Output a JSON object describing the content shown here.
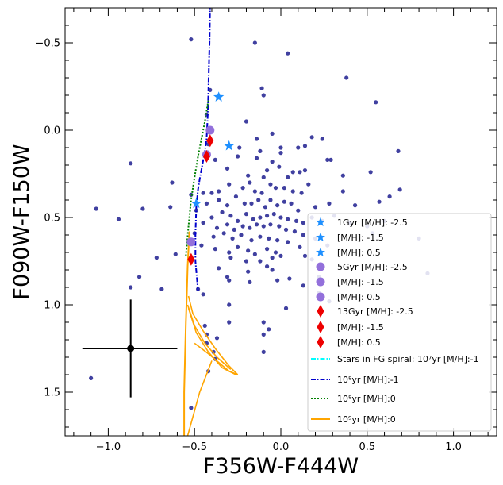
{
  "chart_data": {
    "type": "scatter",
    "xlabel": "F356W-F444W",
    "ylabel": "F090W-F150W",
    "xlim": [
      -1.25,
      1.25
    ],
    "ylim": [
      1.75,
      -0.7
    ],
    "x_ticks": [
      -1.0,
      -0.5,
      0.0,
      0.5,
      1.0
    ],
    "x_tick_labels": [
      "−1.0",
      "−0.5",
      "0.0",
      "0.5",
      "1.0"
    ],
    "y_ticks": [
      -0.5,
      0.0,
      0.5,
      1.0,
      1.5
    ],
    "y_tick_labels": [
      "−0.5",
      "0.0",
      "0.5",
      "1.0",
      "1.5"
    ],
    "colors": {
      "stars": "#1f1f8f",
      "blue_star": "#1e90ff",
      "purple": "#9370db",
      "red": "#ee0000",
      "cyan": "#00ffff",
      "line_blue": "#0000cd",
      "line_green": "#008000",
      "line_orange": "#ffa500"
    },
    "error_bar": {
      "x": -0.87,
      "y": 1.25,
      "xerr_low": 0.28,
      "xerr_high": 0.27,
      "yerr_low": 0.28,
      "yerr_high": 0.28
    },
    "stars": [
      [
        -0.52,
        -0.52
      ],
      [
        0.04,
        -0.44
      ],
      [
        -0.15,
        -0.5
      ],
      [
        0.38,
        -0.3
      ],
      [
        0.55,
        -0.16
      ],
      [
        -0.1,
        -0.2
      ],
      [
        -0.11,
        -0.24
      ],
      [
        -0.2,
        -0.05
      ],
      [
        -0.41,
        -0.23
      ],
      [
        -0.43,
        -0.09
      ],
      [
        -0.42,
        0.08
      ],
      [
        -0.14,
        0.05
      ],
      [
        -0.05,
        0.02
      ],
      [
        0.18,
        0.04
      ],
      [
        0.24,
        0.05
      ],
      [
        -0.87,
        0.19
      ],
      [
        -0.63,
        0.3
      ],
      [
        0.0,
        0.1
      ],
      [
        0.1,
        0.1
      ],
      [
        0.14,
        0.09
      ],
      [
        -0.24,
        0.1
      ],
      [
        -0.12,
        0.12
      ],
      [
        0.0,
        0.13
      ],
      [
        0.27,
        0.17
      ],
      [
        0.29,
        0.17
      ],
      [
        -0.38,
        0.17
      ],
      [
        -0.25,
        0.15
      ],
      [
        -0.14,
        0.16
      ],
      [
        -0.05,
        0.18
      ],
      [
        -0.01,
        0.21
      ],
      [
        0.07,
        0.24
      ],
      [
        0.11,
        0.24
      ],
      [
        -0.31,
        0.22
      ],
      [
        -0.19,
        0.26
      ],
      [
        -0.1,
        0.27
      ],
      [
        -0.08,
        0.23
      ],
      [
        0.04,
        0.27
      ],
      [
        0.14,
        0.23
      ],
      [
        0.36,
        0.26
      ],
      [
        0.52,
        0.24
      ],
      [
        0.68,
        0.12
      ],
      [
        0.16,
        0.31
      ],
      [
        -0.4,
        0.36
      ],
      [
        -0.36,
        0.35
      ],
      [
        -0.3,
        0.31
      ],
      [
        -0.22,
        0.33
      ],
      [
        -0.18,
        0.3
      ],
      [
        -0.15,
        0.35
      ],
      [
        -0.11,
        0.36
      ],
      [
        -0.06,
        0.31
      ],
      [
        -0.03,
        0.33
      ],
      [
        0.02,
        0.33
      ],
      [
        0.07,
        0.35
      ],
      [
        0.12,
        0.36
      ],
      [
        -0.52,
        0.37
      ],
      [
        -0.45,
        0.36
      ],
      [
        -0.43,
        0.42
      ],
      [
        -0.36,
        0.4
      ],
      [
        -0.31,
        0.43
      ],
      [
        -0.26,
        0.38
      ],
      [
        -0.21,
        0.42
      ],
      [
        -0.17,
        0.42
      ],
      [
        -0.13,
        0.4
      ],
      [
        -0.09,
        0.44
      ],
      [
        -0.06,
        0.4
      ],
      [
        -0.02,
        0.43
      ],
      [
        0.02,
        0.41
      ],
      [
        0.06,
        0.42
      ],
      [
        0.1,
        0.46
      ],
      [
        0.2,
        0.44
      ],
      [
        0.28,
        0.42
      ],
      [
        0.36,
        0.35
      ],
      [
        0.43,
        0.43
      ],
      [
        0.57,
        0.41
      ],
      [
        0.63,
        0.38
      ],
      [
        0.69,
        0.34
      ],
      [
        -0.64,
        0.44
      ],
      [
        -0.8,
        0.45
      ],
      [
        -1.07,
        0.45
      ],
      [
        -0.94,
        0.51
      ],
      [
        -0.49,
        0.46
      ],
      [
        -0.4,
        0.5
      ],
      [
        -0.34,
        0.47
      ],
      [
        -0.29,
        0.49
      ],
      [
        -0.25,
        0.52
      ],
      [
        -0.2,
        0.48
      ],
      [
        -0.16,
        0.51
      ],
      [
        -0.12,
        0.5
      ],
      [
        -0.08,
        0.49
      ],
      [
        -0.04,
        0.48
      ],
      [
        0.0,
        0.5
      ],
      [
        0.04,
        0.51
      ],
      [
        0.09,
        0.52
      ],
      [
        0.13,
        0.53
      ],
      [
        0.18,
        0.5
      ],
      [
        0.24,
        0.52
      ],
      [
        0.31,
        0.49
      ],
      [
        0.4,
        0.53
      ],
      [
        0.5,
        0.55
      ],
      [
        0.6,
        0.52
      ],
      [
        -0.45,
        0.53
      ],
      [
        -0.37,
        0.56
      ],
      [
        -0.31,
        0.54
      ],
      [
        -0.27,
        0.57
      ],
      [
        -0.22,
        0.55
      ],
      [
        -0.18,
        0.56
      ],
      [
        -0.14,
        0.54
      ],
      [
        -0.1,
        0.55
      ],
      [
        -0.06,
        0.54
      ],
      [
        -0.01,
        0.55
      ],
      [
        0.03,
        0.57
      ],
      [
        0.08,
        0.58
      ],
      [
        0.13,
        0.6
      ],
      [
        0.2,
        0.62
      ],
      [
        -0.5,
        0.59
      ],
      [
        -0.39,
        0.61
      ],
      [
        -0.33,
        0.59
      ],
      [
        -0.28,
        0.62
      ],
      [
        -0.23,
        0.6
      ],
      [
        -0.17,
        0.63
      ],
      [
        -0.12,
        0.61
      ],
      [
        -0.07,
        0.62
      ],
      [
        -0.02,
        0.63
      ],
      [
        0.04,
        0.64
      ],
      [
        0.11,
        0.67
      ],
      [
        0.27,
        0.66
      ],
      [
        -0.46,
        0.66
      ],
      [
        -0.38,
        0.68
      ],
      [
        -0.3,
        0.7
      ],
      [
        -0.25,
        0.67
      ],
      [
        -0.19,
        0.69
      ],
      [
        -0.15,
        0.71
      ],
      [
        -0.08,
        0.68
      ],
      [
        -0.03,
        0.7
      ],
      [
        0.0,
        0.72
      ],
      [
        -0.61,
        0.71
      ],
      [
        -0.72,
        0.73
      ],
      [
        -0.29,
        0.73
      ],
      [
        -0.2,
        0.75
      ],
      [
        -0.12,
        0.75
      ],
      [
        -0.05,
        0.73
      ],
      [
        0.14,
        0.72
      ],
      [
        0.18,
        0.74
      ],
      [
        -0.08,
        0.78
      ],
      [
        -0.36,
        0.79
      ],
      [
        -0.19,
        0.81
      ],
      [
        -0.05,
        0.8
      ],
      [
        -0.82,
        0.84
      ],
      [
        -0.31,
        0.84
      ],
      [
        -0.3,
        0.86
      ],
      [
        -0.18,
        0.87
      ],
      [
        -0.02,
        0.86
      ],
      [
        0.13,
        0.89
      ],
      [
        0.05,
        0.85
      ],
      [
        -0.87,
        0.9
      ],
      [
        -0.69,
        0.91
      ],
      [
        -0.48,
        0.91
      ],
      [
        -0.45,
        0.94
      ],
      [
        0.22,
        0.93
      ],
      [
        0.28,
        0.98
      ],
      [
        -0.3,
        1.0
      ],
      [
        0.03,
        1.02
      ],
      [
        -0.44,
        1.12
      ],
      [
        -0.3,
        1.1
      ],
      [
        -0.1,
        1.1
      ],
      [
        -0.07,
        1.14
      ],
      [
        -0.43,
        1.17
      ],
      [
        -0.1,
        1.17
      ],
      [
        -0.43,
        1.22
      ],
      [
        -0.37,
        1.19
      ],
      [
        -0.39,
        1.27
      ],
      [
        -0.38,
        1.31
      ],
      [
        -0.1,
        1.27
      ],
      [
        -0.42,
        1.38
      ],
      [
        -1.1,
        1.42
      ],
      [
        -0.52,
        1.59
      ],
      [
        0.85,
        0.82
      ],
      [
        0.22,
        0.84
      ],
      [
        0.8,
        0.62
      ],
      [
        0.53,
        0.59
      ]
    ],
    "series": [
      {
        "name": "1Gyr [M/H]: -2.5",
        "marker": "star",
        "color": "#1e90ff",
        "points": [
          [
            -0.49,
            0.42
          ]
        ]
      },
      {
        "name": "[M/H]: -1.5",
        "marker": "star",
        "color": "#1e90ff",
        "points": [
          [
            -0.3,
            0.09
          ]
        ]
      },
      {
        "name": "[M/H]: 0.5",
        "marker": "star",
        "color": "#1e90ff",
        "points": [
          [
            -0.36,
            -0.19
          ]
        ]
      },
      {
        "name": "5Gyr [M/H]: -2.5",
        "marker": "circle",
        "color": "#9370db",
        "points": [
          [
            -0.52,
            0.64
          ]
        ]
      },
      {
        "name": "[M/H]: -1.5",
        "marker": "circle",
        "color": "#9370db",
        "points": [
          [
            -0.43,
            0.14
          ]
        ]
      },
      {
        "name": "[M/H]: 0.5",
        "marker": "circle",
        "color": "#9370db",
        "points": [
          [
            -0.41,
            0.0
          ]
        ]
      },
      {
        "name": "13Gyr [M/H]: -2.5",
        "marker": "diamond",
        "color": "#ee0000",
        "points": [
          [
            -0.52,
            0.74
          ]
        ]
      },
      {
        "name": "[M/H]: -1.5",
        "marker": "diamond",
        "color": "#ee0000",
        "points": [
          [
            -0.43,
            0.15
          ]
        ]
      },
      {
        "name": "[M/H]: 0.5",
        "marker": "diamond",
        "color": "#ee0000",
        "points": [
          [
            -0.41,
            0.06
          ]
        ]
      },
      {
        "name": "Stars in FG spiral: 10⁷yr [M/H]:-1",
        "style": "dashdot",
        "color": "#00ffff",
        "points": []
      },
      {
        "name": "10⁸yr [M/H]:-1",
        "style": "dashdot",
        "color": "#0000cd",
        "points": [
          [
            -0.41,
            -0.72
          ],
          [
            -0.413,
            -0.5
          ],
          [
            -0.418,
            -0.3
          ],
          [
            -0.42,
            -0.2
          ],
          [
            -0.425,
            -0.05
          ],
          [
            -0.43,
            0.05
          ],
          [
            -0.44,
            0.12
          ],
          [
            -0.455,
            0.2
          ],
          [
            -0.47,
            0.28
          ],
          [
            -0.48,
            0.34
          ],
          [
            -0.49,
            0.44
          ],
          [
            -0.495,
            0.6
          ],
          [
            -0.495,
            0.75
          ],
          [
            -0.48,
            0.92
          ]
        ]
      },
      {
        "name": "10⁸yr [M/H]:0",
        "style": "dotted",
        "color": "#008000",
        "points": [
          [
            -0.42,
            -0.17
          ],
          [
            -0.44,
            -0.05
          ],
          [
            -0.46,
            0.05
          ],
          [
            -0.48,
            0.15
          ],
          [
            -0.5,
            0.27
          ],
          [
            -0.52,
            0.4
          ],
          [
            -0.535,
            0.55
          ],
          [
            -0.55,
            0.72
          ]
        ]
      },
      {
        "name": "10⁹yr [M/H]:0",
        "style": "solid",
        "color": "#ffa500",
        "points": [
          [
            -0.53,
            0.58
          ],
          [
            -0.535,
            0.68
          ],
          [
            -0.54,
            0.78
          ],
          [
            -0.545,
            0.95
          ],
          [
            -0.55,
            1.1
          ],
          [
            -0.555,
            1.3
          ],
          [
            -0.56,
            1.5
          ],
          [
            -0.56,
            1.75
          ]
        ],
        "loops": [
          [
            [
              -0.535,
              0.95
            ],
            [
              -0.51,
              1.05
            ],
            [
              -0.45,
              1.15
            ],
            [
              -0.38,
              1.25
            ],
            [
              -0.3,
              1.35
            ],
            [
              -0.25,
              1.4
            ]
          ],
          [
            [
              -0.54,
              1.0
            ],
            [
              -0.5,
              1.12
            ],
            [
              -0.44,
              1.22
            ],
            [
              -0.37,
              1.3
            ],
            [
              -0.29,
              1.37
            ]
          ],
          [
            [
              -0.535,
              1.02
            ],
            [
              -0.49,
              1.16
            ],
            [
              -0.42,
              1.27
            ],
            [
              -0.34,
              1.36
            ],
            [
              -0.26,
              1.4
            ]
          ],
          [
            [
              -0.25,
              1.4
            ],
            [
              -0.3,
              1.38
            ],
            [
              -0.36,
              1.33
            ],
            [
              -0.42,
              1.28
            ],
            [
              -0.46,
              1.25
            ],
            [
              -0.5,
              1.22
            ]
          ],
          [
            [
              -0.4,
              1.32
            ],
            [
              -0.47,
              1.5
            ],
            [
              -0.54,
              1.75
            ]
          ]
        ]
      }
    ],
    "legend_position": "lower-right"
  }
}
